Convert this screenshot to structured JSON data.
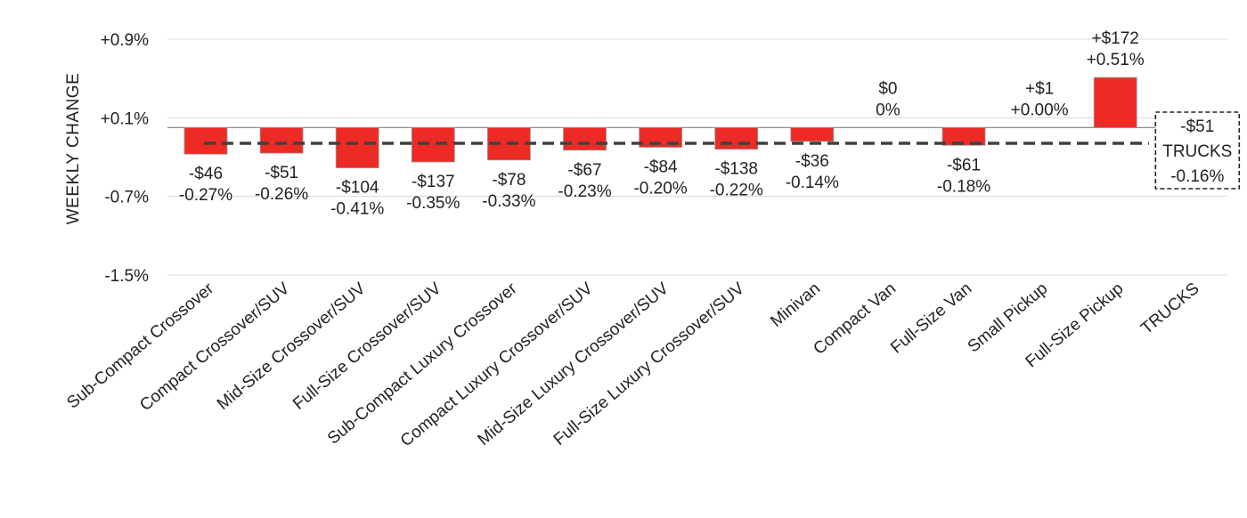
{
  "chart_data": {
    "type": "bar",
    "ylabel": "WEEKLY CHANGE",
    "ylim": [
      -1.5,
      0.9
    ],
    "yticks": [
      "+0.9%",
      "+0.1%",
      "-0.7%",
      "-1.5%"
    ],
    "ytick_values": [
      0.9,
      0.1,
      -0.7,
      -1.5
    ],
    "grid": true,
    "categories": [
      "Sub-Compact Crossover",
      "Compact Crossover/SUV",
      "Mid-Size Crossover/SUV",
      "Full-Size Crossover/SUV",
      "Sub-Compact Luxury Crossover",
      "Compact Luxury Crossover/SUV",
      "Mid-Size Luxury Crossover/SUV",
      "Full-Size Luxury Crossover/SUV",
      "Minivan",
      "Compact Van",
      "Full-Size Van",
      "Small Pickup",
      "Full-Size Pickup",
      "TRUCKS"
    ],
    "values": [
      -0.27,
      -0.26,
      -0.41,
      -0.35,
      -0.33,
      -0.23,
      -0.2,
      -0.22,
      -0.14,
      0.0,
      -0.18,
      0.0,
      0.51,
      null
    ],
    "labels_dollar": [
      "-$46",
      "-$51",
      "-$104",
      "-$137",
      "-$78",
      "-$67",
      "-$84",
      "-$138",
      "-$36",
      "$0",
      "-$61",
      "+$1",
      "+$172",
      ""
    ],
    "labels_pct": [
      "-0.27%",
      "-0.26%",
      "-0.41%",
      "-0.35%",
      "-0.33%",
      "-0.23%",
      "-0.20%",
      "-0.22%",
      "-0.14%",
      "0%",
      "-0.18%",
      "+0.00%",
      "+0.51%",
      ""
    ],
    "average": {
      "value": -0.16,
      "name": "TRUCKS",
      "dollar": "-$51",
      "pct": "-0.16%"
    },
    "colors": {
      "bar": "#ee2a24",
      "average_line": "#404040"
    }
  }
}
